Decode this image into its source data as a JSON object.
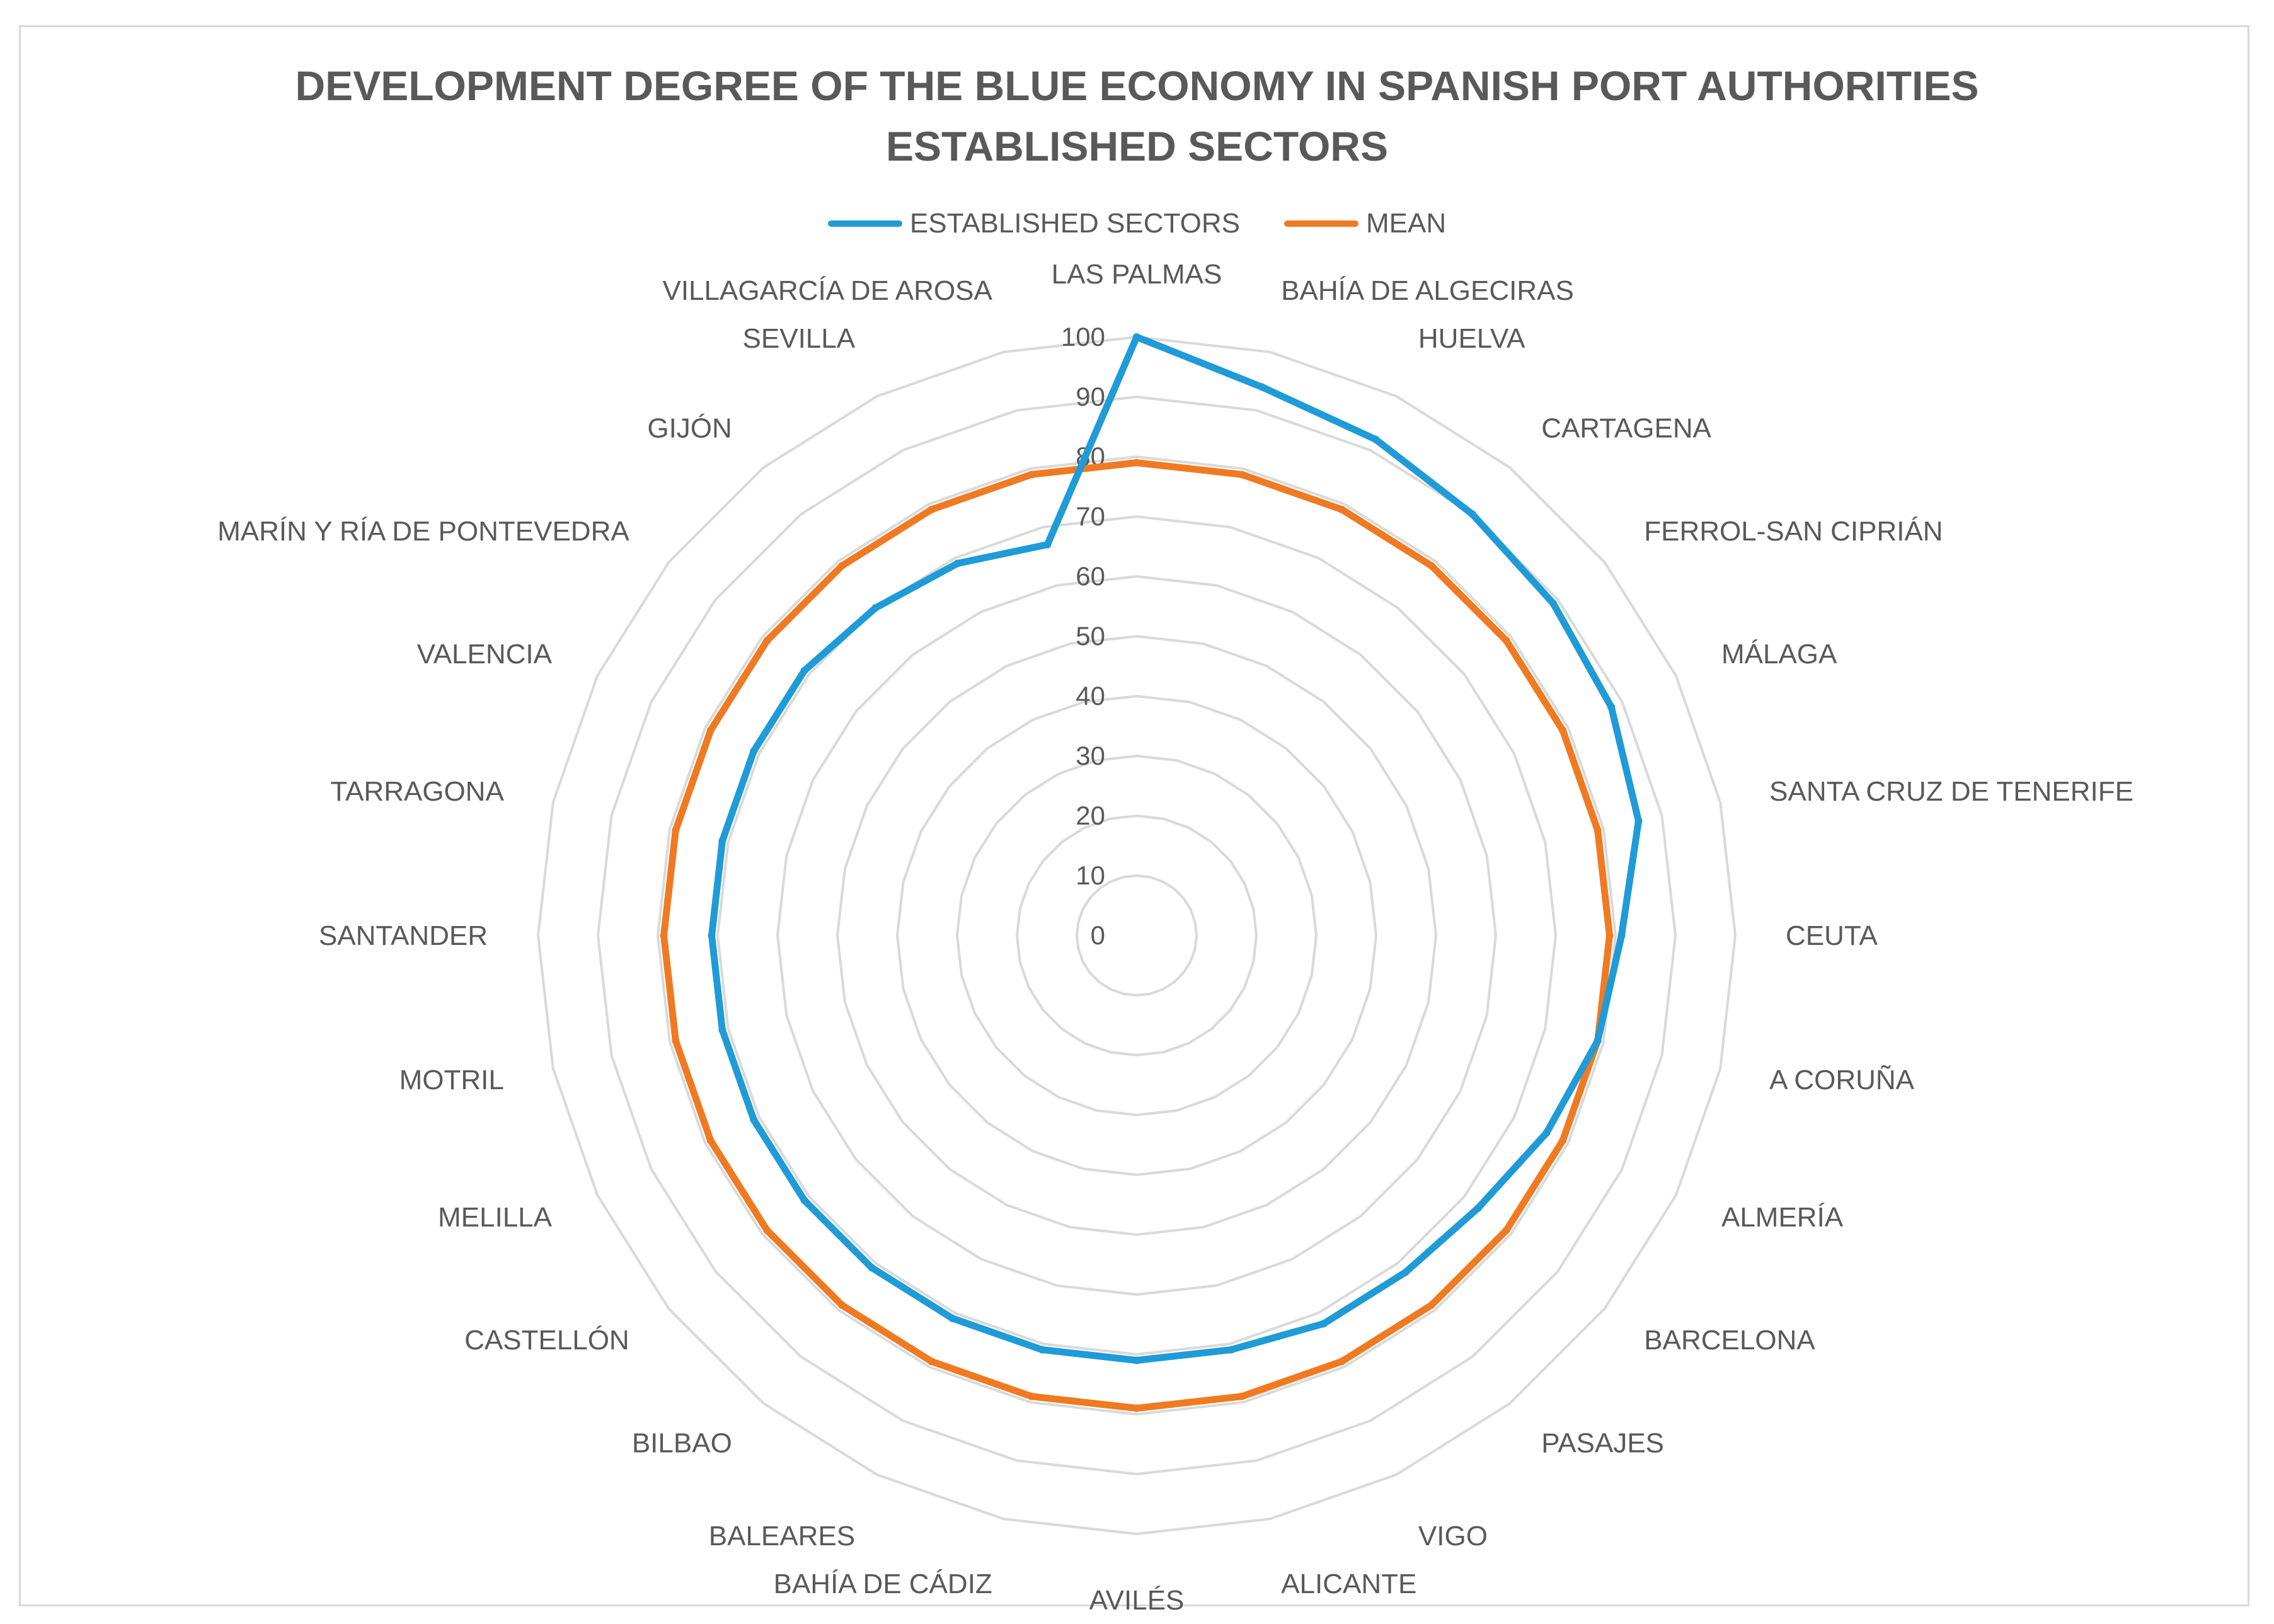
{
  "chart_data": {
    "type": "radar",
    "title": "DEVELOPMENT  DEGREE OF THE BLUE ECONOMY IN SPANISH PORT AUTHORITIES",
    "subtitle": "ESTABLISHED SECTORS",
    "legend_position": "top",
    "r_range": [
      0,
      100
    ],
    "r_ticks": [
      0,
      10,
      20,
      30,
      40,
      50,
      60,
      70,
      80,
      90,
      100
    ],
    "categories": [
      "LAS PALMAS",
      "BAHÍA DE ALGECIRAS",
      "HUELVA",
      "CARTAGENA",
      "FERROL-SAN CIPRIÁN",
      "MÁLAGA",
      "SANTA CRUZ DE TENERIFE",
      "CEUTA",
      "A CORUÑA",
      "ALMERÍA",
      "BARCELONA",
      "PASAJES",
      "VIGO",
      "ALICANTE",
      "AVILÉS",
      "BAHÍA DE CÁDIZ",
      "BALEARES",
      "BILBAO",
      "CASTELLÓN",
      "MELILLA",
      "MOTRIL",
      "SANTANDER",
      "TARRAGONA",
      "VALENCIA",
      "MARÍN Y RÍA DE PONTEVEDRA",
      "GIJÓN",
      "SEVILLA",
      "VILLAGARCÍA DE AROSA"
    ],
    "series": [
      {
        "name": "ESTABLISHED SECTORS",
        "color": "#1f9bd7",
        "values": [
          100,
          94,
          92,
          90,
          89,
          88,
          86,
          81,
          79,
          76,
          73,
          72,
          72,
          71,
          71,
          71,
          71,
          71,
          71,
          71,
          71,
          71,
          71,
          71,
          71,
          70,
          69,
          67
        ]
      },
      {
        "name": "MEAN",
        "color": "#f07a22",
        "values": [
          79,
          79,
          79,
          79,
          79,
          79,
          79,
          79,
          79,
          79,
          79,
          79,
          79,
          79,
          79,
          79,
          79,
          79,
          79,
          79,
          79,
          79,
          79,
          79,
          79,
          79,
          79,
          79
        ]
      }
    ],
    "grid_color": "#d9d9d9"
  }
}
